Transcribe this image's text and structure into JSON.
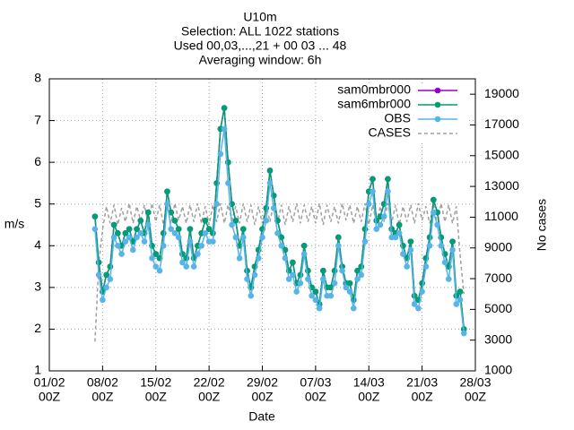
{
  "chart_data": {
    "type": "line",
    "title": [
      "U10m",
      "Selection: ALL   1022 stations",
      "Used 00,03,...,21 + 00 03 ... 48",
      "Averaging window:  6h"
    ],
    "xlabel": "Date",
    "ylabel": "m/s",
    "y2label": "No cases",
    "x": [
      6,
      6.5,
      7,
      7.5,
      8,
      8.5,
      9,
      9.5,
      10,
      10.5,
      11,
      11.5,
      12,
      12.5,
      13,
      13.5,
      14,
      14.5,
      15,
      15.5,
      16,
      16.5,
      17,
      17.5,
      18,
      18.5,
      19,
      19.5,
      20,
      20.5,
      21,
      21.5,
      22,
      22.5,
      23,
      23.5,
      24,
      24.5,
      25,
      25.5,
      26,
      26.5,
      27,
      27.5,
      28,
      28.5,
      29,
      29.5,
      30,
      30.5,
      31,
      31.5,
      32,
      32.5,
      33,
      33.5,
      34,
      34.5,
      35,
      35.5,
      36,
      36.5,
      37,
      37.5,
      38,
      38.5,
      39,
      39.5,
      40,
      40.5,
      41,
      41.5,
      42,
      42.5,
      43,
      43.5,
      44,
      44.5,
      45,
      45.5,
      46,
      46.5,
      47,
      47.5,
      48,
      48.5,
      49,
      49.5,
      50,
      50.5,
      51,
      51.5,
      52,
      52.5,
      53,
      53.5,
      54,
      54.5
    ],
    "xlim": [
      0,
      56
    ],
    "xticks": [
      {
        "value": 0,
        "label": [
          "01/02",
          "00Z"
        ]
      },
      {
        "value": 7,
        "label": [
          "08/02",
          "00Z"
        ]
      },
      {
        "value": 14,
        "label": [
          "15/02",
          "00Z"
        ]
      },
      {
        "value": 21,
        "label": [
          "22/02",
          "00Z"
        ]
      },
      {
        "value": 28,
        "label": [
          "29/02",
          "00Z"
        ]
      },
      {
        "value": 35,
        "label": [
          "07/03",
          "00Z"
        ]
      },
      {
        "value": 42,
        "label": [
          "14/03",
          "00Z"
        ]
      },
      {
        "value": 49,
        "label": [
          "21/03",
          "00Z"
        ]
      },
      {
        "value": 56,
        "label": [
          "28/03",
          "00Z"
        ]
      }
    ],
    "ylim": [
      1,
      8
    ],
    "yticks": [
      1,
      2,
      3,
      4,
      5,
      6,
      7,
      8
    ],
    "y2lim": [
      1000,
      20000
    ],
    "y2ticks": [
      1000,
      3000,
      5000,
      7000,
      9000,
      11000,
      13000,
      15000,
      17000,
      19000
    ],
    "grid": true,
    "legend": "top-right",
    "series": [
      {
        "name": "sam0mbr000",
        "color": "#9400d3",
        "values": [
          4.7,
          3.6,
          2.9,
          3.3,
          3.5,
          4.5,
          4.3,
          4.0,
          4.3,
          4.4,
          4.1,
          4.4,
          4.6,
          4.3,
          4.8,
          4.0,
          3.8,
          3.7,
          4.3,
          5.3,
          4.8,
          4.6,
          4.4,
          3.8,
          3.7,
          4.4,
          3.7,
          4.0,
          4.3,
          4.6,
          4.4,
          4.3,
          5.5,
          6.8,
          7.3,
          6.0,
          5.0,
          4.6,
          4.0,
          4.4,
          3.4,
          3.0,
          3.5,
          3.9,
          4.4,
          4.9,
          5.8,
          5.2,
          4.6,
          4.2,
          3.9,
          3.4,
          3.6,
          3.1,
          3.3,
          4.0,
          3.4,
          3.0,
          2.9,
          2.6,
          3.4,
          3.0,
          3.0,
          3.4,
          4.2,
          3.5,
          3.1,
          3.1,
          2.7,
          3.4,
          3.5,
          4.4,
          5.3,
          5.6,
          4.6,
          4.7,
          5.0,
          5.6,
          4.4,
          4.3,
          4.5,
          4.0,
          3.7,
          4.1,
          2.8,
          2.7,
          3.1,
          3.7,
          4.2,
          5.1,
          4.8,
          4.2,
          3.8,
          3.5,
          4.1,
          2.8,
          2.9,
          2.0
        ]
      },
      {
        "name": "sam6mbr000",
        "color": "#009e73",
        "values": [
          4.7,
          3.6,
          2.9,
          3.3,
          3.5,
          4.5,
          4.3,
          4.0,
          4.3,
          4.4,
          4.1,
          4.4,
          4.6,
          4.3,
          4.8,
          4.0,
          3.8,
          3.7,
          4.3,
          5.3,
          4.8,
          4.6,
          4.4,
          3.8,
          3.7,
          4.4,
          3.7,
          4.0,
          4.3,
          4.6,
          4.4,
          4.3,
          5.5,
          6.8,
          7.3,
          6.0,
          5.0,
          4.6,
          4.0,
          4.4,
          3.4,
          3.0,
          3.5,
          3.9,
          4.4,
          4.9,
          5.8,
          5.2,
          4.6,
          4.2,
          3.9,
          3.4,
          3.6,
          3.1,
          3.3,
          4.0,
          3.4,
          3.0,
          2.9,
          2.6,
          3.4,
          3.0,
          3.0,
          3.4,
          4.2,
          3.5,
          3.1,
          3.1,
          2.7,
          3.4,
          3.5,
          4.4,
          5.3,
          5.6,
          4.6,
          4.7,
          5.0,
          5.6,
          4.4,
          4.3,
          4.5,
          4.0,
          3.7,
          4.1,
          2.8,
          2.7,
          3.1,
          3.7,
          4.2,
          5.1,
          4.8,
          4.2,
          3.8,
          3.5,
          4.1,
          2.8,
          2.9,
          2.0
        ]
      },
      {
        "name": "OBS",
        "color": "#56b4e9",
        "values": [
          4.4,
          3.3,
          2.7,
          3.0,
          3.2,
          4.2,
          4.0,
          3.8,
          4.1,
          4.2,
          3.9,
          4.2,
          4.3,
          4.1,
          4.5,
          3.7,
          3.5,
          3.4,
          4.0,
          5.0,
          4.4,
          4.3,
          4.2,
          3.6,
          3.5,
          4.1,
          3.5,
          3.8,
          4.0,
          4.3,
          4.1,
          4.1,
          5.0,
          6.2,
          6.8,
          5.5,
          4.5,
          4.2,
          3.7,
          4.2,
          3.2,
          2.8,
          3.3,
          3.7,
          4.2,
          4.6,
          5.5,
          4.9,
          4.3,
          4.0,
          3.7,
          3.2,
          3.3,
          2.9,
          3.1,
          3.8,
          3.2,
          2.8,
          2.7,
          2.5,
          3.2,
          2.8,
          2.8,
          3.1,
          4.0,
          3.4,
          3.0,
          2.9,
          2.5,
          3.2,
          3.3,
          4.1,
          5.0,
          5.3,
          4.4,
          4.5,
          4.7,
          5.3,
          4.2,
          4.2,
          4.3,
          3.8,
          3.5,
          3.9,
          2.6,
          2.5,
          2.9,
          3.5,
          4.0,
          4.8,
          4.5,
          4.0,
          3.6,
          3.2,
          3.9,
          2.6,
          2.7,
          1.9
        ]
      },
      {
        "name": "CASES",
        "color": "#a0a0a0",
        "axis": "y2",
        "dashed": true,
        "values": [
          2900,
          8000,
          10200,
          11700,
          10600,
          11800,
          10500,
          11600,
          10700,
          11900,
          10600,
          11700,
          10800,
          11800,
          10600,
          11900,
          10700,
          11800,
          10500,
          11700,
          10600,
          11900,
          10800,
          11700,
          10600,
          11800,
          10700,
          11900,
          10600,
          11700,
          10500,
          11800,
          10700,
          11900,
          10600,
          11800,
          10800,
          11700,
          10600,
          11900,
          10700,
          11800,
          10500,
          11700,
          10600,
          11800,
          10700,
          11900,
          10600,
          11800,
          10500,
          11700,
          10700,
          11900,
          10600,
          11800,
          10700,
          11700,
          10600,
          11900,
          10500,
          11800,
          10700,
          11700,
          10600,
          11900,
          10800,
          11800,
          10600,
          11700,
          10700,
          11900,
          10500,
          11800,
          10600,
          11700,
          10700,
          11900,
          10600,
          11800,
          10500,
          11700,
          10700,
          11800,
          10600,
          11900,
          10800,
          11700,
          10600,
          11800,
          10500,
          11900,
          10700,
          11800,
          10600,
          11700,
          8500,
          6000
        ]
      }
    ]
  }
}
